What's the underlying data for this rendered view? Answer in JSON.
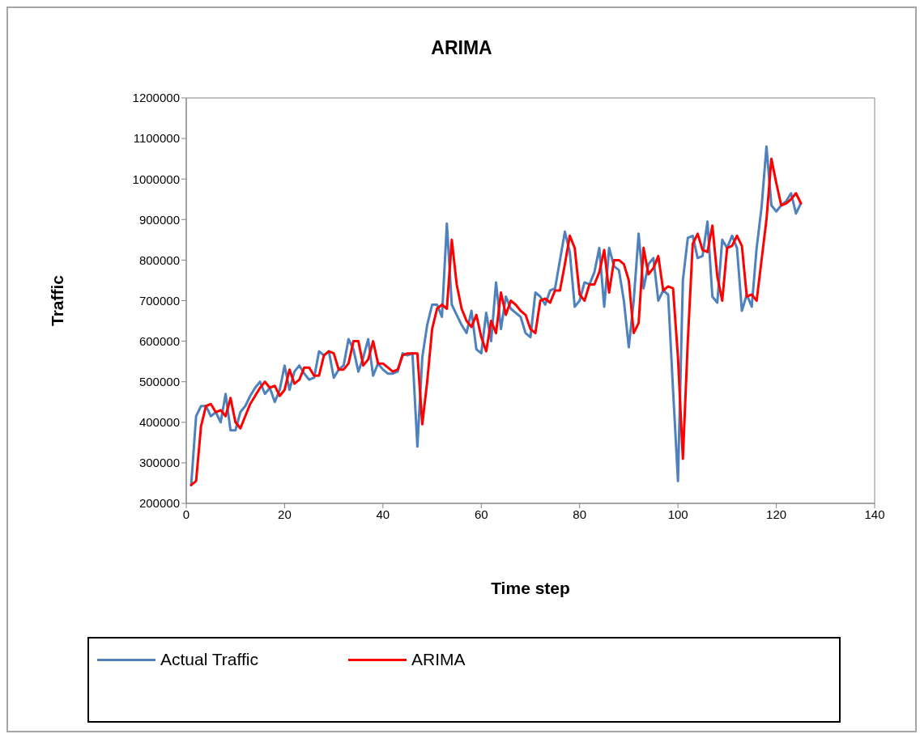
{
  "chart_data": {
    "type": "line",
    "title": "ARIMA",
    "xlabel": "Time step",
    "ylabel": "Traffic",
    "x": [
      1,
      2,
      3,
      4,
      5,
      6,
      7,
      8,
      9,
      10,
      11,
      12,
      13,
      14,
      15,
      16,
      17,
      18,
      19,
      20,
      21,
      22,
      23,
      24,
      25,
      26,
      27,
      28,
      29,
      30,
      31,
      32,
      33,
      34,
      35,
      36,
      37,
      38,
      39,
      40,
      41,
      42,
      43,
      44,
      45,
      46,
      47,
      48,
      49,
      50,
      51,
      52,
      53,
      54,
      55,
      56,
      57,
      58,
      59,
      60,
      61,
      62,
      63,
      64,
      65,
      66,
      67,
      68,
      69,
      70,
      71,
      72,
      73,
      74,
      75,
      76,
      77,
      78,
      79,
      80,
      81,
      82,
      83,
      84,
      85,
      86,
      87,
      88,
      89,
      90,
      91,
      92,
      93,
      94,
      95,
      96,
      97,
      98,
      99,
      100,
      101,
      102,
      103,
      104,
      105,
      106,
      107,
      108,
      109,
      110,
      111,
      112,
      113,
      114,
      115,
      116,
      117,
      118,
      119,
      120,
      121,
      122,
      123,
      124,
      125
    ],
    "series": [
      {
        "name": "Actual Traffic",
        "color": "#4f81bd",
        "values": [
          245000,
          415000,
          440000,
          440000,
          415000,
          425000,
          400000,
          470000,
          380000,
          380000,
          425000,
          440000,
          465000,
          485000,
          500000,
          470000,
          485000,
          450000,
          480000,
          540000,
          480000,
          525000,
          540000,
          520000,
          505000,
          510000,
          575000,
          565000,
          575000,
          510000,
          530000,
          540000,
          605000,
          580000,
          525000,
          560000,
          605000,
          515000,
          545000,
          530000,
          520000,
          520000,
          525000,
          570000,
          565000,
          570000,
          340000,
          560000,
          640000,
          690000,
          690000,
          660000,
          890000,
          690000,
          665000,
          640000,
          620000,
          675000,
          580000,
          570000,
          670000,
          600000,
          745000,
          630000,
          710000,
          680000,
          670000,
          660000,
          620000,
          610000,
          720000,
          710000,
          690000,
          725000,
          730000,
          800000,
          870000,
          820000,
          685000,
          700000,
          745000,
          740000,
          770000,
          830000,
          685000,
          830000,
          785000,
          775000,
          700000,
          585000,
          700000,
          865000,
          730000,
          790000,
          805000,
          700000,
          725000,
          715000,
          480000,
          255000,
          750000,
          855000,
          860000,
          805000,
          810000,
          895000,
          710000,
          695000,
          850000,
          830000,
          860000,
          830000,
          675000,
          715000,
          685000,
          830000,
          930000,
          1080000,
          935000,
          920000,
          935000,
          945000,
          965000,
          915000,
          940000
        ]
      },
      {
        "name": "ARIMA",
        "color": "#ff0000",
        "values": [
          245000,
          255000,
          390000,
          440000,
          445000,
          425000,
          430000,
          415000,
          460000,
          400000,
          385000,
          415000,
          445000,
          465000,
          485000,
          500000,
          485000,
          490000,
          465000,
          480000,
          530000,
          495000,
          505000,
          535000,
          535000,
          515000,
          515000,
          565000,
          575000,
          570000,
          530000,
          530000,
          545000,
          600000,
          600000,
          540000,
          555000,
          600000,
          545000,
          545000,
          535000,
          525000,
          530000,
          565000,
          570000,
          570000,
          570000,
          395000,
          500000,
          630000,
          680000,
          690000,
          680000,
          850000,
          740000,
          680000,
          650000,
          635000,
          665000,
          610000,
          575000,
          650000,
          620000,
          720000,
          665000,
          700000,
          690000,
          675000,
          665000,
          630000,
          620000,
          700000,
          705000,
          695000,
          725000,
          725000,
          790000,
          860000,
          830000,
          715000,
          700000,
          740000,
          740000,
          770000,
          825000,
          720000,
          800000,
          800000,
          790000,
          750000,
          620000,
          645000,
          830000,
          765000,
          780000,
          810000,
          725000,
          735000,
          730000,
          560000,
          310000,
          600000,
          840000,
          865000,
          825000,
          820000,
          885000,
          760000,
          700000,
          830000,
          835000,
          860000,
          835000,
          710000,
          715000,
          700000,
          800000,
          900000,
          1050000,
          990000,
          935000,
          940000,
          950000,
          965000,
          940000
        ]
      }
    ],
    "xlim": [
      0,
      140
    ],
    "xticks": [
      0,
      20,
      40,
      60,
      80,
      100,
      120,
      140
    ],
    "ylim": [
      200000,
      1200000
    ],
    "yticks": [
      200000,
      300000,
      400000,
      500000,
      600000,
      700000,
      800000,
      900000,
      1000000,
      1100000,
      1200000
    ],
    "legend": "bottom",
    "marker": "none"
  }
}
